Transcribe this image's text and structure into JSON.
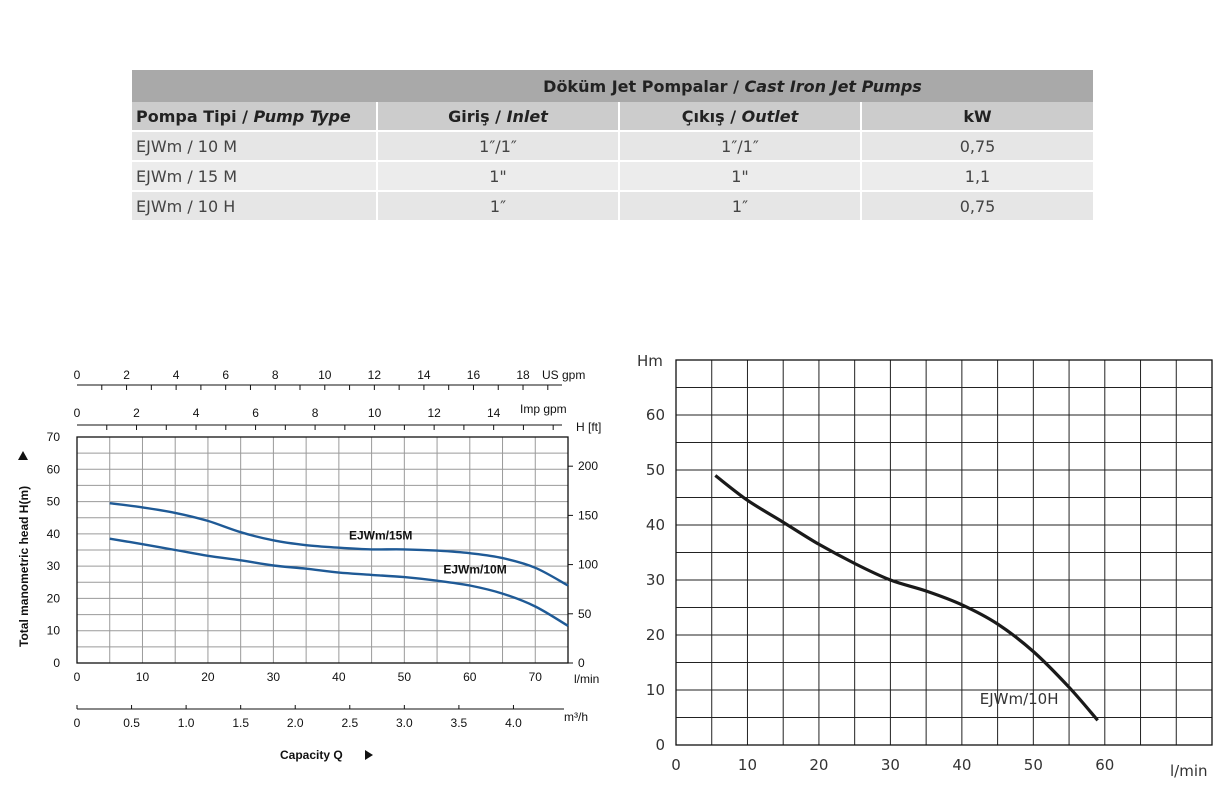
{
  "table": {
    "title_tr": "Döküm Jet Pompalar / ",
    "title_en": "Cast Iron Jet Pumps",
    "columns": [
      {
        "tr": "Pompa Tipi / ",
        "en": "Pump Type"
      },
      {
        "tr": "Giriş / ",
        "en": "Inlet"
      },
      {
        "tr": "Çıkış / ",
        "en": "Outlet"
      },
      {
        "tr": "kW",
        "en": ""
      }
    ],
    "rows": [
      {
        "type": "EJWm / 10 M",
        "inlet": "1″/1″",
        "outlet": "1″/1″",
        "kw": "0,75"
      },
      {
        "type": "EJWm / 15 M",
        "inlet": "1\"",
        "outlet": "1\"",
        "kw": "1,1"
      },
      {
        "type": "EJWm / 10 H",
        "inlet": "1″",
        "outlet": "1″",
        "kw": "0,75"
      }
    ]
  },
  "chart_data": [
    {
      "type": "line",
      "xlabel": "Capacity Q",
      "ylabel": "Total manometric head H(m)",
      "x_unit": "l/min",
      "xlim": [
        0,
        75
      ],
      "ylim": [
        0,
        70
      ],
      "x_ticks": [
        0,
        10,
        20,
        30,
        40,
        50,
        60,
        70
      ],
      "y_ticks": [
        0,
        10,
        20,
        30,
        40,
        50,
        60,
        70
      ],
      "grid": true,
      "secondary_axes": {
        "us_gpm": {
          "label": "US gpm",
          "ticks": [
            "0",
            "2",
            "4",
            "6",
            "8",
            "10",
            "12",
            "14",
            "16",
            "18"
          ]
        },
        "imp_gpm": {
          "label": "Imp gpm",
          "ticks": [
            "0",
            "2",
            "4",
            "6",
            "8",
            "10",
            "12",
            "14"
          ]
        },
        "m3h": {
          "label": "m³/h",
          "ticks": [
            "0",
            "0.5",
            "1.0",
            "1.5",
            "2.0",
            "2.5",
            "3.0",
            "3.5",
            "4.0"
          ]
        },
        "h_ft": {
          "label": "H  [ft]",
          "ticks": [
            "0",
            "50",
            "100",
            "150",
            "200"
          ]
        }
      },
      "series": [
        {
          "name": "EJWm/15M",
          "x": [
            5,
            10,
            15,
            20,
            25,
            30,
            35,
            40,
            45,
            50,
            55,
            60,
            65,
            70,
            75
          ],
          "y": [
            49.5,
            48.2,
            46.5,
            44,
            40.5,
            38,
            36.5,
            35.7,
            35.2,
            35.2,
            34.8,
            34,
            32.5,
            29.5,
            24
          ]
        },
        {
          "name": "EJWm/10M",
          "x": [
            5,
            10,
            15,
            20,
            25,
            30,
            35,
            40,
            45,
            50,
            55,
            60,
            65,
            70,
            75
          ],
          "y": [
            38.5,
            36.8,
            35,
            33.2,
            31.8,
            30.2,
            29.2,
            28,
            27.3,
            26.6,
            25.5,
            24,
            21.5,
            17.5,
            11.5
          ]
        }
      ]
    },
    {
      "type": "line",
      "xlabel": "l/min",
      "ylabel": "Hm",
      "xlim": [
        0,
        75
      ],
      "ylim": [
        0,
        70
      ],
      "x_ticks": [
        0,
        10,
        20,
        30,
        40,
        50,
        60
      ],
      "y_ticks": [
        0,
        10,
        20,
        30,
        40,
        50,
        60
      ],
      "grid": true,
      "series": [
        {
          "name": "EJWm/10H",
          "x": [
            5.5,
            10,
            15,
            20,
            25,
            30,
            35,
            40,
            45,
            50,
            55,
            59
          ],
          "y": [
            49,
            44.5,
            40.5,
            36.5,
            33,
            30,
            28,
            25.5,
            22,
            17,
            10.5,
            4.5
          ]
        }
      ]
    }
  ],
  "colors": {
    "series_left": "#1f5a96",
    "series_right": "#1a1a1a",
    "table_header": "#a9a9a9"
  }
}
